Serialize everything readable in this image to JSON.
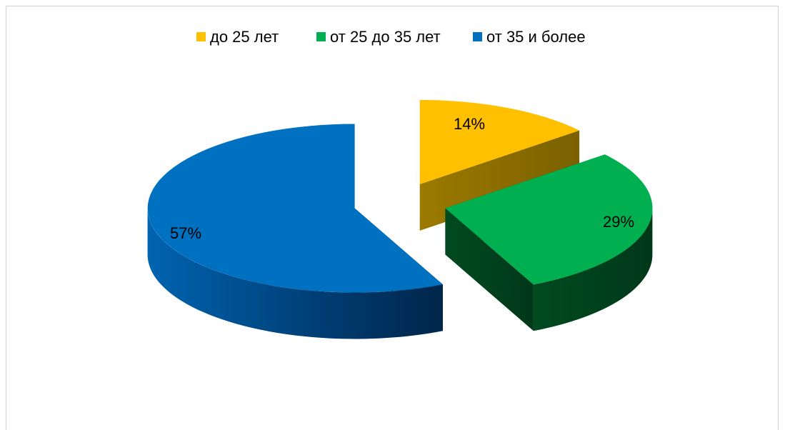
{
  "chart_data": {
    "type": "pie",
    "categories": [
      "до 25 лет",
      "от 25 до 35 лет",
      "от 35 и более"
    ],
    "values": [
      14,
      29,
      57
    ],
    "value_labels": [
      "14%",
      "29%",
      "57%"
    ],
    "colors": [
      "#FFC000",
      "#00B050",
      "#0070C0"
    ],
    "legend": "top"
  }
}
